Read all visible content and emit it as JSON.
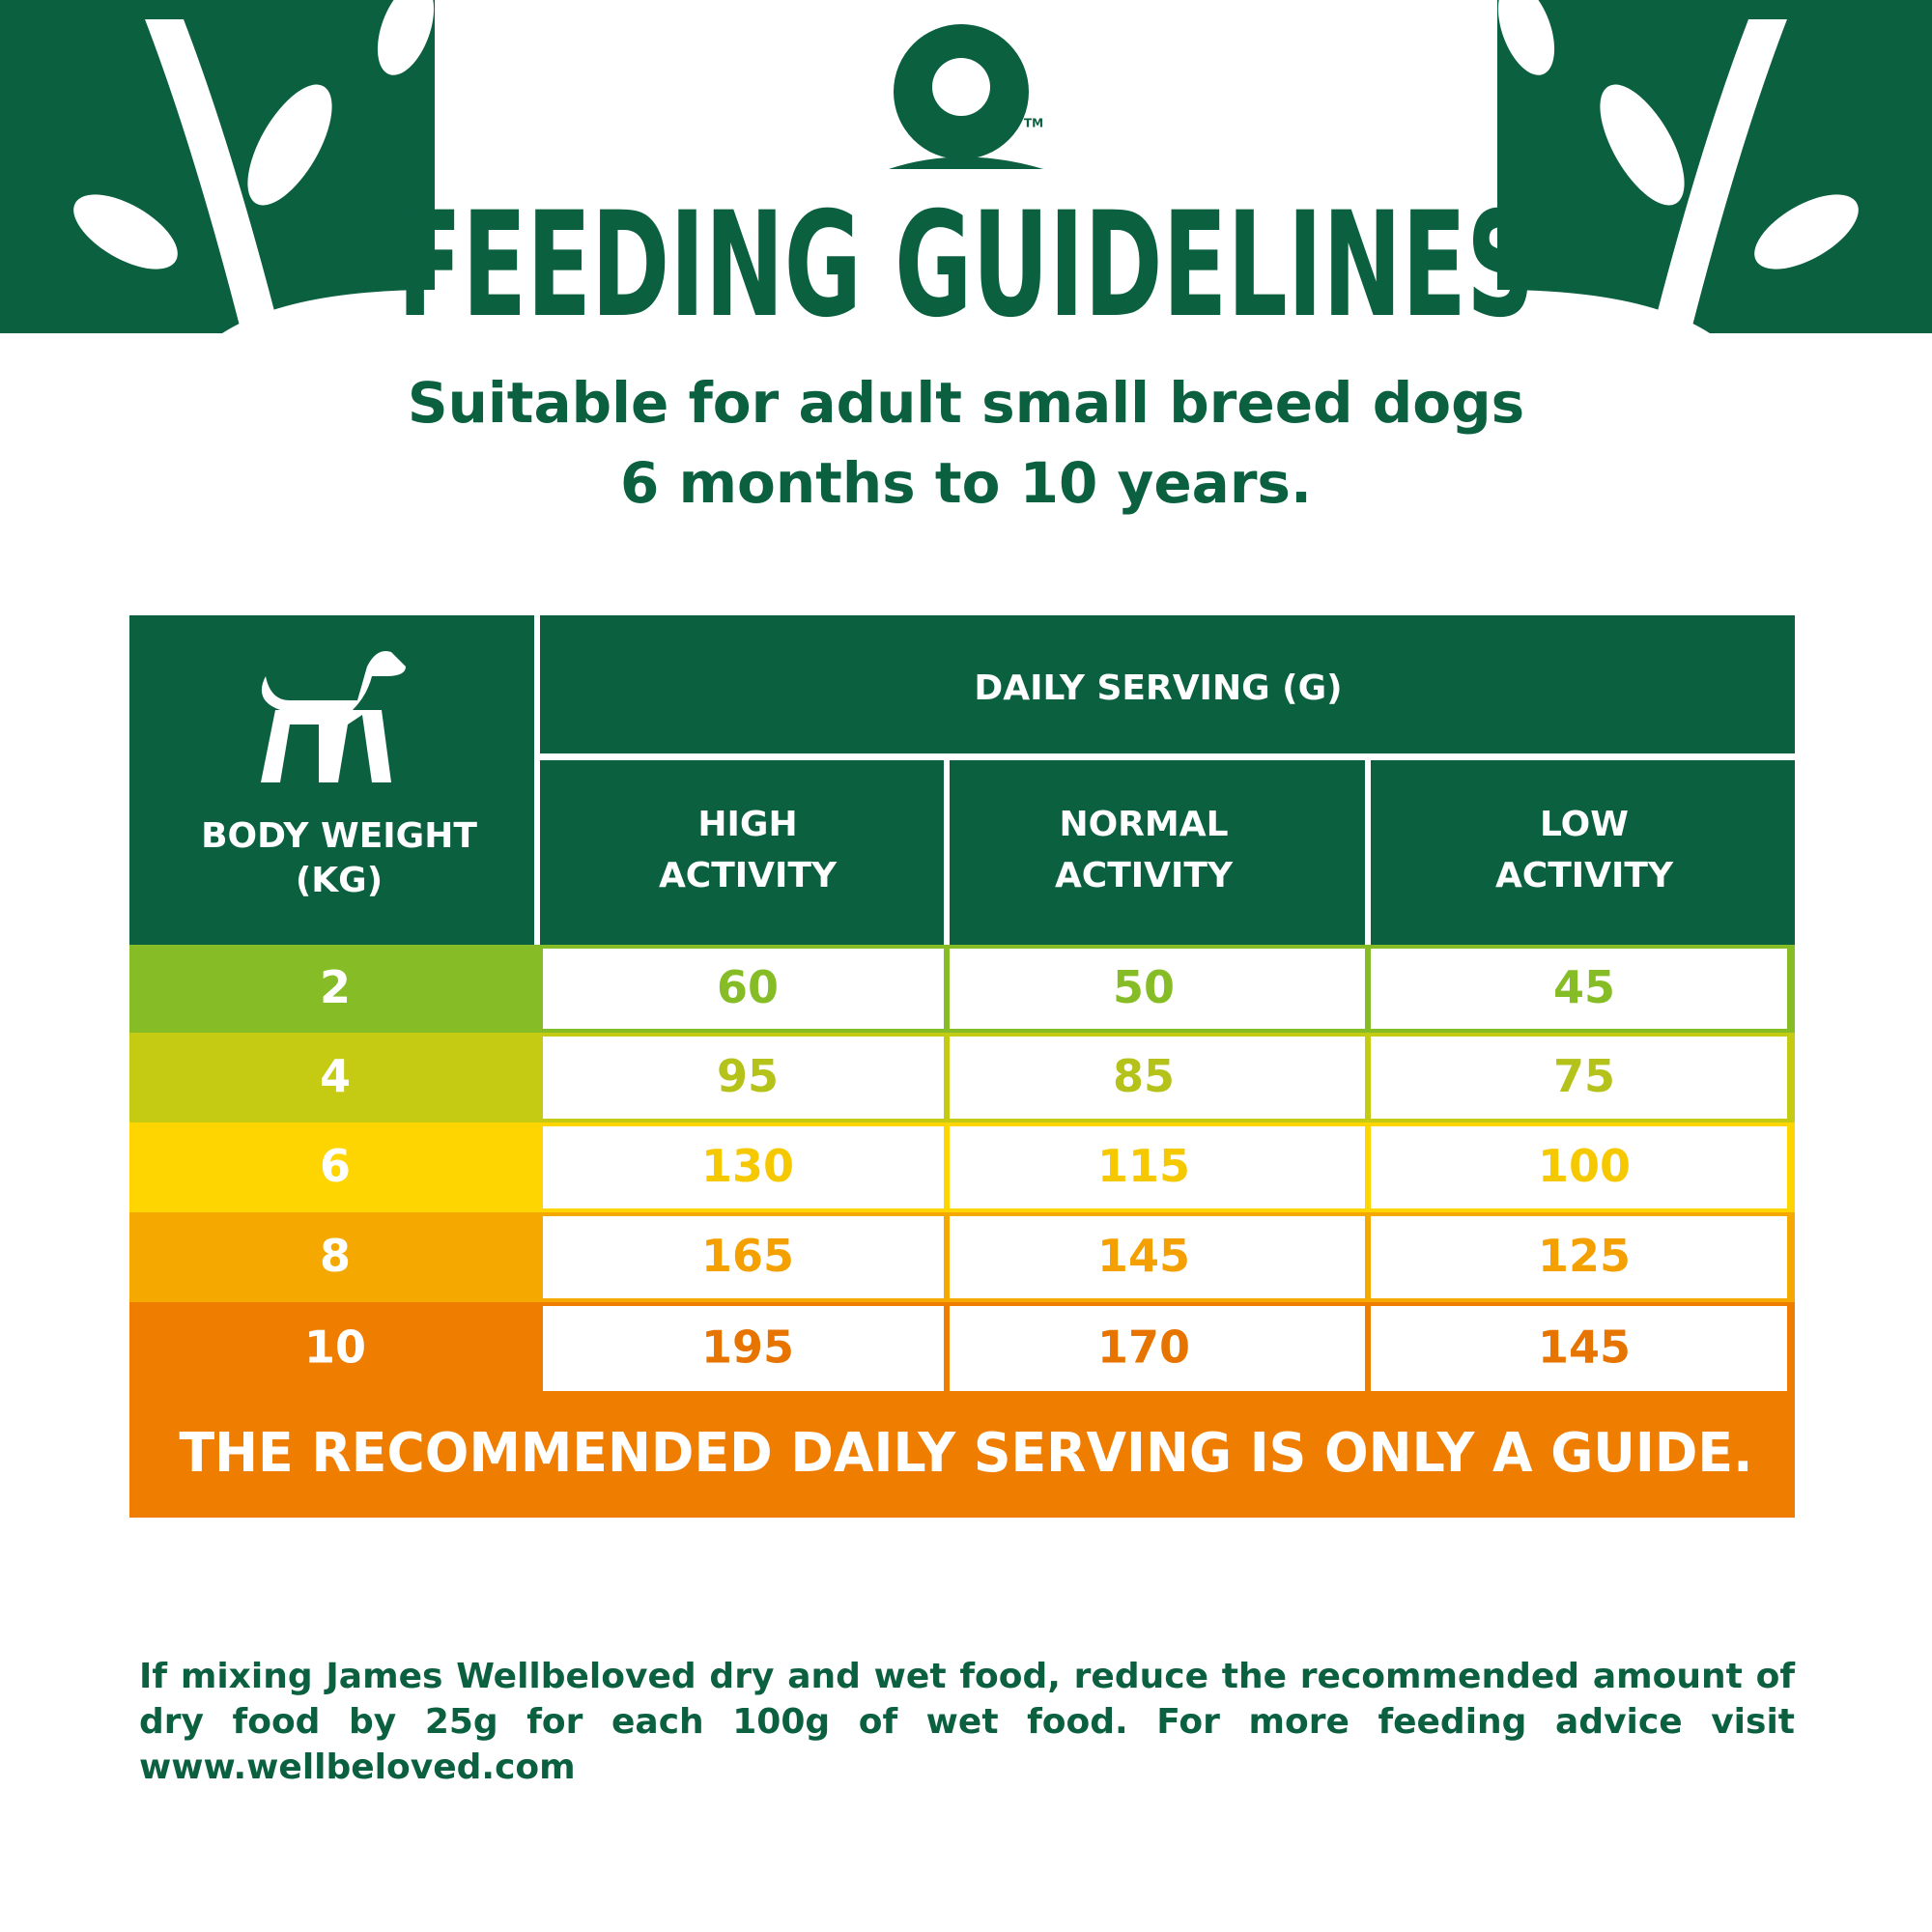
{
  "header": {
    "logo_mark": "TM",
    "title": "FEEDING GUIDELINES",
    "subtitle": [
      "Suitable for adult small breed dogs",
      "6 months to 10 years."
    ]
  },
  "table": {
    "corner": [
      "BODY WEIGHT",
      "(KG)"
    ],
    "group_header": "DAILY SERVING (G)",
    "columns": [
      [
        "HIGH",
        "ACTIVITY"
      ],
      [
        "NORMAL",
        "ACTIVITY"
      ],
      [
        "LOW",
        "ACTIVITY"
      ]
    ],
    "rows": [
      [
        "2",
        "60",
        "50",
        "45"
      ],
      [
        "4",
        "95",
        "85",
        "75"
      ],
      [
        "6",
        "130",
        "115",
        "100"
      ],
      [
        "8",
        "165",
        "145",
        "125"
      ],
      [
        "10",
        "195",
        "170",
        "145"
      ]
    ]
  },
  "note": "THE RECOMMENDED DAILY SERVING IS ONLY A GUIDE.",
  "footer": "If mixing James Wellbeloved dry and wet food, reduce the recommended amount of dry food by 25g for each 100g of wet food. For more feeding advice visit www.wellbeloved.com"
}
